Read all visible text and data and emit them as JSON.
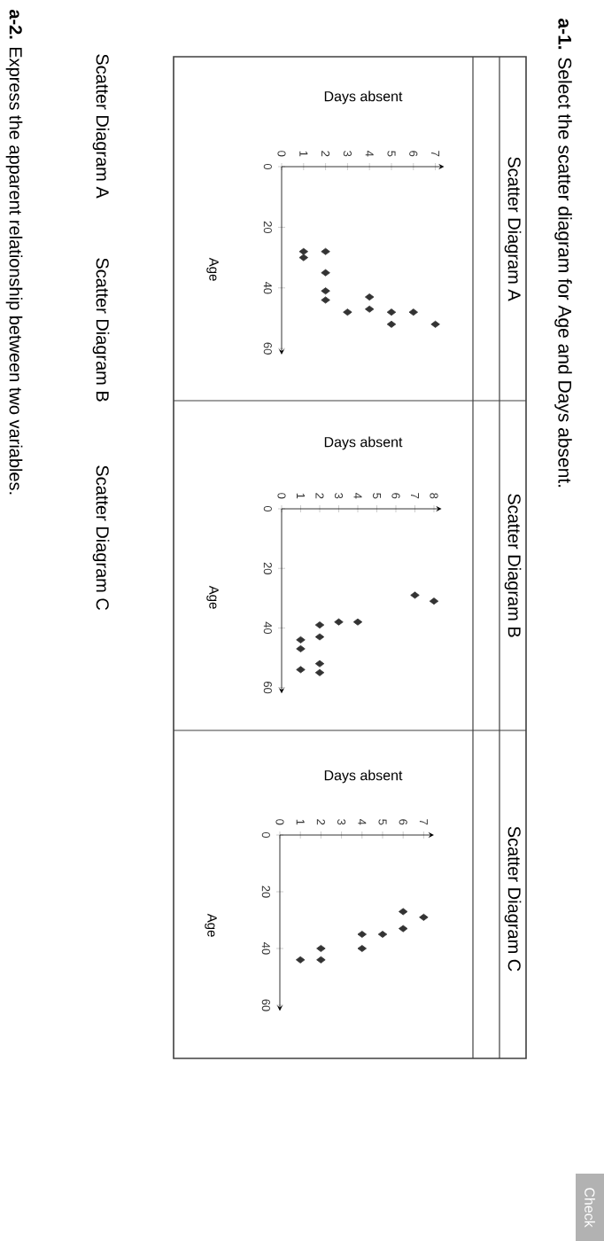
{
  "chart_data": [
    {
      "type": "scatter",
      "xlabel": "Days absent",
      "ylabel": "Age",
      "xlim": [
        0,
        7.4
      ],
      "xticks": [
        0,
        1,
        2,
        3,
        4,
        5,
        6,
        7
      ],
      "ylim": [
        62,
        0
      ],
      "yticks": [
        0,
        20,
        40,
        60
      ],
      "marker": "diamond",
      "series": [
        {
          "color": "#333333",
          "x": [
            1,
            1,
            2,
            2,
            2,
            2,
            3,
            4,
            4,
            5,
            5,
            6,
            7
          ],
          "values": [
            28,
            30,
            28,
            35,
            41,
            44,
            48,
            43,
            47,
            48,
            52,
            48,
            52
          ]
        }
      ]
    },
    {
      "type": "scatter",
      "xlabel": "Days absent",
      "ylabel": "Age",
      "xlim": [
        0,
        8.4
      ],
      "xticks": [
        0,
        1,
        2,
        3,
        4,
        5,
        6,
        7,
        8
      ],
      "ylim": [
        62,
        0
      ],
      "yticks": [
        0,
        20,
        40,
        60
      ],
      "marker": "diamond",
      "series": [
        {
          "color": "#333333",
          "x": [
            7,
            8,
            4,
            3,
            2,
            2,
            1,
            1,
            2,
            2,
            1
          ],
          "values": [
            29,
            31,
            38,
            38,
            39,
            43,
            44,
            47,
            52,
            55,
            54
          ]
        }
      ]
    },
    {
      "type": "scatter",
      "xlabel": "Days absent",
      "ylabel": "Age",
      "xlim": [
        0,
        7.5
      ],
      "xticks": [
        0,
        1,
        2,
        3,
        4,
        5,
        6,
        7
      ],
      "ylim": [
        62,
        0
      ],
      "yticks": [
        0,
        20,
        40,
        60
      ],
      "marker": "diamond",
      "series": [
        {
          "color": "#333333",
          "x": [
            7,
            6,
            6,
            5,
            4,
            4,
            2,
            2,
            1
          ],
          "values": [
            29,
            27,
            33,
            35,
            35,
            40,
            40,
            44,
            44
          ]
        }
      ]
    },
    {
      "type": "other",
      "annotations": [
        "**a-1.** Select the scatter diagram for Age and Days absent.",
        "Scatter Diagram A",
        "Scatter Diagram B",
        "Scatter Diagram C",
        "Scatter Diagram A",
        "Scatter Diagram B",
        "Scatter Diagram C",
        "**a-2.** Express the apparent relationship between two variables.",
        "Check"
      ]
    }
  ]
}
